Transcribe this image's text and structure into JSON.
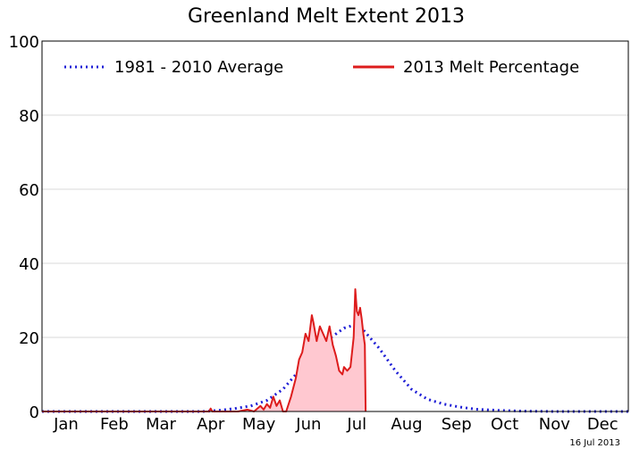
{
  "chart_data": {
    "type": "line",
    "title": "Greenland Melt Extent 2013",
    "xlabel": "",
    "ylabel": "",
    "x_range": [
      0,
      365
    ],
    "ylim": [
      0,
      100
    ],
    "y_ticks": [
      0,
      20,
      40,
      60,
      80,
      100
    ],
    "months": [
      {
        "label": "Jan",
        "day": 15
      },
      {
        "label": "Feb",
        "day": 45
      },
      {
        "label": "Mar",
        "day": 74
      },
      {
        "label": "Apr",
        "day": 105
      },
      {
        "label": "May",
        "day": 135
      },
      {
        "label": "Jun",
        "day": 166
      },
      {
        "label": "Jul",
        "day": 196
      },
      {
        "label": "Aug",
        "day": 227
      },
      {
        "label": "Sep",
        "day": 258
      },
      {
        "label": "Oct",
        "day": 288
      },
      {
        "label": "Nov",
        "day": 319
      },
      {
        "label": "Dec",
        "day": 349
      }
    ],
    "grid": "y-only",
    "legend_position": "top",
    "date_stamp": "16 Jul 2013",
    "series": [
      {
        "name": "1981 - 2010 Average",
        "style": "dotted",
        "color": "#1f1fd6",
        "points": [
          [
            0,
            0
          ],
          [
            100,
            0
          ],
          [
            110,
            0.3
          ],
          [
            120,
            0.8
          ],
          [
            130,
            1.5
          ],
          [
            140,
            3
          ],
          [
            150,
            6
          ],
          [
            160,
            11
          ],
          [
            170,
            16
          ],
          [
            180,
            20
          ],
          [
            188,
            22.5
          ],
          [
            194,
            23.3
          ],
          [
            200,
            22
          ],
          [
            210,
            17
          ],
          [
            220,
            11
          ],
          [
            230,
            6
          ],
          [
            240,
            3.3
          ],
          [
            250,
            2
          ],
          [
            260,
            1.2
          ],
          [
            270,
            0.6
          ],
          [
            285,
            0.3
          ],
          [
            300,
            0.1
          ],
          [
            320,
            0
          ],
          [
            365,
            0
          ]
        ]
      },
      {
        "name": "2013 Melt Percentage",
        "style": "solid",
        "color": "#dd1c1c",
        "fill": "#ffc8d0",
        "points": [
          [
            0,
            0
          ],
          [
            100,
            0
          ],
          [
            104,
            0
          ],
          [
            105,
            0.8
          ],
          [
            106,
            0
          ],
          [
            122,
            0
          ],
          [
            128,
            0.5
          ],
          [
            132,
            0
          ],
          [
            136,
            1.5
          ],
          [
            138,
            0.5
          ],
          [
            140,
            2
          ],
          [
            142,
            1
          ],
          [
            144,
            4
          ],
          [
            146,
            1.5
          ],
          [
            148,
            3
          ],
          [
            150,
            0
          ],
          [
            152,
            0
          ],
          [
            155,
            4
          ],
          [
            158,
            9
          ],
          [
            160,
            14
          ],
          [
            162,
            16
          ],
          [
            164,
            21
          ],
          [
            166,
            19
          ],
          [
            168,
            26
          ],
          [
            169,
            24
          ],
          [
            171,
            19
          ],
          [
            173,
            23
          ],
          [
            175,
            21
          ],
          [
            177,
            19
          ],
          [
            179,
            23
          ],
          [
            181,
            18
          ],
          [
            183,
            15
          ],
          [
            185,
            11
          ],
          [
            187,
            10
          ],
          [
            188,
            12
          ],
          [
            190,
            11
          ],
          [
            192,
            12
          ],
          [
            194,
            20
          ],
          [
            195,
            33
          ],
          [
            196,
            27
          ],
          [
            197,
            26
          ],
          [
            198,
            28
          ],
          [
            199,
            25
          ],
          [
            200,
            21
          ],
          [
            201,
            18
          ],
          [
            201.5,
            0
          ]
        ]
      }
    ]
  }
}
